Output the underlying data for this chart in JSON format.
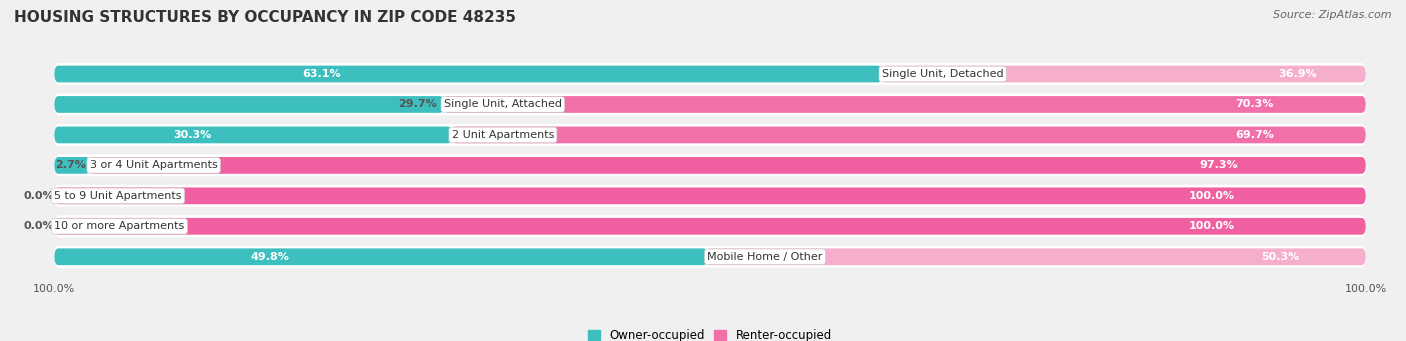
{
  "title": "HOUSING STRUCTURES BY OCCUPANCY IN ZIP CODE 48235",
  "source": "Source: ZipAtlas.com",
  "categories": [
    "Single Unit, Detached",
    "Single Unit, Attached",
    "2 Unit Apartments",
    "3 or 4 Unit Apartments",
    "5 to 9 Unit Apartments",
    "10 or more Apartments",
    "Mobile Home / Other"
  ],
  "owner_pct": [
    63.1,
    29.7,
    30.3,
    2.7,
    0.0,
    0.0,
    49.8
  ],
  "renter_pct": [
    36.9,
    70.3,
    69.7,
    97.3,
    100.0,
    100.0,
    50.3
  ],
  "owner_color": "#3DBFBF",
  "renter_color_light": "#F5A8C8",
  "renter_color_dark": "#F060A0",
  "owner_label": "Owner-occupied",
  "renter_label": "Renter-occupied",
  "background_color": "#f0f0f0",
  "row_bg_color": "#ffffff",
  "title_fontsize": 11,
  "source_fontsize": 8,
  "label_fontsize": 8.5,
  "pct_fontsize": 8,
  "axis_label_fontsize": 8
}
